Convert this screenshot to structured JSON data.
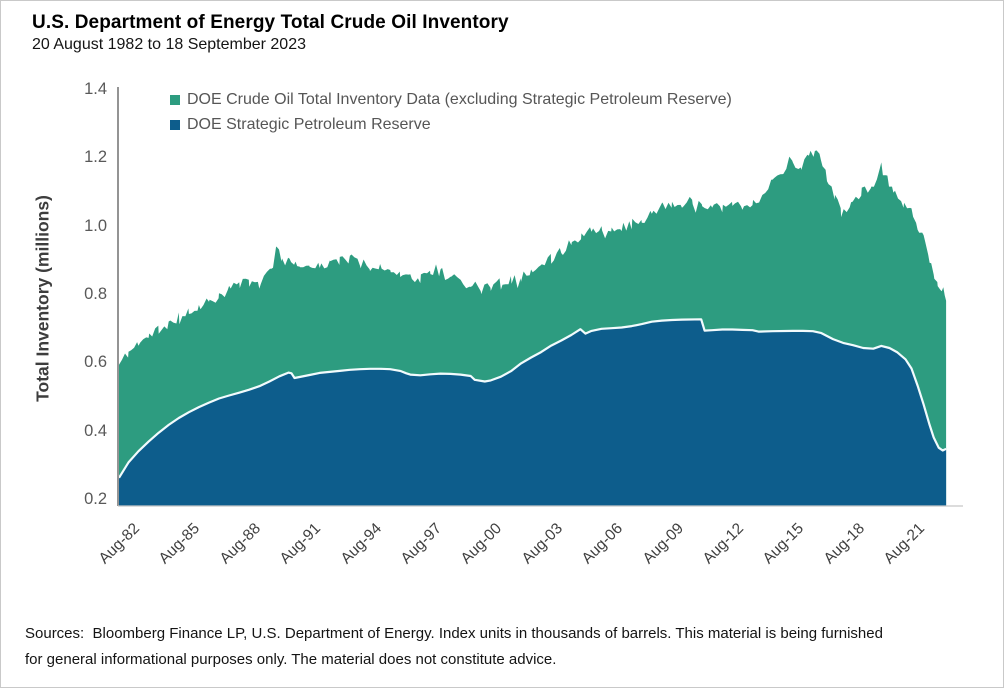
{
  "header": {
    "title": "U.S. Department of Energy Total Crude Oil Inventory",
    "subtitle": "20 August 1982 to 18 September 2023"
  },
  "footer": {
    "line1": "Sources:  Bloomberg Finance LP, U.S. Department of Energy. Index units in thousands of barrels. This material is being furnished",
    "line2": "for general informational purposes only. The material does not constitute advice."
  },
  "colors": {
    "green_area": "#2d9c80",
    "blue_area": "#0d5d8c",
    "separator_line": "#f2fbfd",
    "y_spine": "#7a7a7a",
    "x_spine": "#c8c8c8",
    "tick_text": "#595959",
    "xtick_text": "#3f3f3f"
  },
  "chart_data": {
    "type": "area",
    "stacked": true,
    "title": "U.S. Department of Energy Total Crude Oil Inventory",
    "subtitle": "20 August 1982 to 18 September 2023",
    "ylabel": "Total Inventory (millions)",
    "xlabel": "",
    "ylim": [
      0.2,
      1.4
    ],
    "x_range_years": [
      1982.63,
      2023.72
    ],
    "grid": false,
    "legend_position": "top-left inside",
    "legend": [
      {
        "label": "DOE Crude Oil Total Inventory Data (excluding Strategic Petroleum Reserve)",
        "color": "#2d9c80"
      },
      {
        "label": "DOE Strategic Petroleum Reserve",
        "color": "#0d5d8c"
      }
    ],
    "y_ticks": [
      {
        "label": "1.4",
        "v": 1.4
      },
      {
        "label": "1.2",
        "v": 1.2
      },
      {
        "label": "1.0",
        "v": 1.0
      },
      {
        "label": "0.8",
        "v": 0.8
      },
      {
        "label": "0.6",
        "v": 0.6
      },
      {
        "label": "0.4",
        "v": 0.4
      },
      {
        "label": "0.2",
        "v": 0.2
      }
    ],
    "x_ticks": [
      {
        "label": "Aug-82",
        "t": 1982.63
      },
      {
        "label": "Aug-85",
        "t": 1985.63
      },
      {
        "label": "Aug-88",
        "t": 1988.63
      },
      {
        "label": "Aug-91",
        "t": 1991.63
      },
      {
        "label": "Aug-94",
        "t": 1994.63
      },
      {
        "label": "Aug-97",
        "t": 1997.63
      },
      {
        "label": "Aug-00",
        "t": 2000.63
      },
      {
        "label": "Aug-03",
        "t": 2003.63
      },
      {
        "label": "Aug-06",
        "t": 2006.63
      },
      {
        "label": "Aug-09",
        "t": 2009.63
      },
      {
        "label": "Aug-12",
        "t": 2012.63
      },
      {
        "label": "Aug-15",
        "t": 2015.63
      },
      {
        "label": "Aug-18",
        "t": 2018.63
      },
      {
        "label": "Aug-21",
        "t": 2021.63
      }
    ],
    "note": "Stacked area chart, weekly data. Values in millions (index units are thousands of barrels). 'spr' is the bottom blue band (line values = SPR level). 'total_top_of_stack' is the top edge of the green band (SPR + commercial inventory). Green band thickness = total minus SPR. Points are [decimal_year, value] estimated from the plot.",
    "noise_amplitude": 0.015,
    "series": [
      {
        "name": "DOE Strategic Petroleum Reserve",
        "id": "spr",
        "color": "#0d5d8c",
        "points": [
          [
            1982.63,
            0.262
          ],
          [
            1983.1,
            0.307
          ],
          [
            1983.6,
            0.34
          ],
          [
            1984.1,
            0.368
          ],
          [
            1984.6,
            0.394
          ],
          [
            1985.1,
            0.417
          ],
          [
            1985.6,
            0.437
          ],
          [
            1986.1,
            0.454
          ],
          [
            1986.6,
            0.469
          ],
          [
            1987.1,
            0.482
          ],
          [
            1987.6,
            0.494
          ],
          [
            1988.1,
            0.503
          ],
          [
            1988.6,
            0.511
          ],
          [
            1989.1,
            0.52
          ],
          [
            1989.6,
            0.53
          ],
          [
            1990.1,
            0.544
          ],
          [
            1990.6,
            0.559
          ],
          [
            1991.05,
            0.57
          ],
          [
            1991.2,
            0.568
          ],
          [
            1991.35,
            0.554
          ],
          [
            1991.6,
            0.557
          ],
          [
            1992.1,
            0.563
          ],
          [
            1992.6,
            0.569
          ],
          [
            1993.1,
            0.572
          ],
          [
            1993.6,
            0.575
          ],
          [
            1994.1,
            0.578
          ],
          [
            1994.6,
            0.58
          ],
          [
            1995.1,
            0.581
          ],
          [
            1995.6,
            0.581
          ],
          [
            1996.1,
            0.58
          ],
          [
            1996.6,
            0.575
          ],
          [
            1996.9,
            0.568
          ],
          [
            1997.1,
            0.564
          ],
          [
            1997.6,
            0.562
          ],
          [
            1998.1,
            0.565
          ],
          [
            1998.6,
            0.567
          ],
          [
            1999.1,
            0.566
          ],
          [
            1999.6,
            0.564
          ],
          [
            2000.1,
            0.56
          ],
          [
            2000.3,
            0.549
          ],
          [
            2000.8,
            0.544
          ],
          [
            2001.1,
            0.547
          ],
          [
            2001.6,
            0.558
          ],
          [
            2002.1,
            0.574
          ],
          [
            2002.6,
            0.597
          ],
          [
            2003.1,
            0.614
          ],
          [
            2003.6,
            0.63
          ],
          [
            2004.1,
            0.649
          ],
          [
            2004.6,
            0.664
          ],
          [
            2005.1,
            0.68
          ],
          [
            2005.55,
            0.697
          ],
          [
            2005.8,
            0.684
          ],
          [
            2006.1,
            0.692
          ],
          [
            2006.6,
            0.698
          ],
          [
            2007.1,
            0.7
          ],
          [
            2007.6,
            0.702
          ],
          [
            2008.1,
            0.706
          ],
          [
            2008.6,
            0.712
          ],
          [
            2009.1,
            0.719
          ],
          [
            2009.6,
            0.722
          ],
          [
            2010.1,
            0.724
          ],
          [
            2010.6,
            0.725
          ],
          [
            2011.55,
            0.726
          ],
          [
            2011.72,
            0.693
          ],
          [
            2012.1,
            0.694
          ],
          [
            2012.6,
            0.696
          ],
          [
            2013.1,
            0.696
          ],
          [
            2013.6,
            0.695
          ],
          [
            2014.1,
            0.694
          ],
          [
            2014.4,
            0.69
          ],
          [
            2015.1,
            0.691
          ],
          [
            2016.1,
            0.692
          ],
          [
            2016.6,
            0.692
          ],
          [
            2017.1,
            0.691
          ],
          [
            2017.5,
            0.686
          ],
          [
            2018.1,
            0.668
          ],
          [
            2018.6,
            0.657
          ],
          [
            2019.1,
            0.65
          ],
          [
            2019.6,
            0.642
          ],
          [
            2020.1,
            0.64
          ],
          [
            2020.5,
            0.648
          ],
          [
            2020.9,
            0.642
          ],
          [
            2021.3,
            0.629
          ],
          [
            2021.7,
            0.609
          ],
          [
            2022.0,
            0.582
          ],
          [
            2022.3,
            0.532
          ],
          [
            2022.6,
            0.477
          ],
          [
            2022.9,
            0.417
          ],
          [
            2023.1,
            0.38
          ],
          [
            2023.35,
            0.35
          ],
          [
            2023.55,
            0.342
          ],
          [
            2023.72,
            0.347
          ]
        ]
      },
      {
        "name": "DOE Crude Oil Total Inventory Data (excluding Strategic Petroleum Reserve)",
        "id": "total_top_of_stack",
        "color": "#2d9c80",
        "points": [
          [
            1982.63,
            0.593
          ],
          [
            1983.1,
            0.628
          ],
          [
            1983.6,
            0.658
          ],
          [
            1984.1,
            0.674
          ],
          [
            1984.6,
            0.694
          ],
          [
            1985.1,
            0.71
          ],
          [
            1985.6,
            0.724
          ],
          [
            1986.1,
            0.744
          ],
          [
            1986.6,
            0.764
          ],
          [
            1987.1,
            0.78
          ],
          [
            1987.6,
            0.794
          ],
          [
            1988.1,
            0.81
          ],
          [
            1988.6,
            0.828
          ],
          [
            1989.1,
            0.834
          ],
          [
            1989.6,
            0.828
          ],
          [
            1990.2,
            0.868
          ],
          [
            1990.45,
            0.943
          ],
          [
            1990.7,
            0.89
          ],
          [
            1991.1,
            0.906
          ],
          [
            1991.4,
            0.888
          ],
          [
            1991.6,
            0.884
          ],
          [
            1992.1,
            0.89
          ],
          [
            1992.6,
            0.88
          ],
          [
            1993.1,
            0.894
          ],
          [
            1993.6,
            0.894
          ],
          [
            1994.1,
            0.904
          ],
          [
            1994.6,
            0.886
          ],
          [
            1995.1,
            0.88
          ],
          [
            1995.6,
            0.876
          ],
          [
            1996.1,
            0.87
          ],
          [
            1996.6,
            0.86
          ],
          [
            1997.1,
            0.85
          ],
          [
            1997.6,
            0.844
          ],
          [
            1998.1,
            0.86
          ],
          [
            1998.6,
            0.864
          ],
          [
            1999.1,
            0.858
          ],
          [
            1999.6,
            0.84
          ],
          [
            2000.1,
            0.82
          ],
          [
            2000.6,
            0.81
          ],
          [
            2001.1,
            0.824
          ],
          [
            2001.6,
            0.834
          ],
          [
            2002.1,
            0.844
          ],
          [
            2002.6,
            0.85
          ],
          [
            2003.1,
            0.864
          ],
          [
            2003.6,
            0.88
          ],
          [
            2004.1,
            0.9
          ],
          [
            2004.6,
            0.924
          ],
          [
            2005.1,
            0.954
          ],
          [
            2005.6,
            0.974
          ],
          [
            2006.1,
            0.984
          ],
          [
            2006.6,
            0.994
          ],
          [
            2007.1,
            0.988
          ],
          [
            2007.6,
            0.994
          ],
          [
            2008.1,
            1.004
          ],
          [
            2008.6,
            1.004
          ],
          [
            2009.1,
            1.038
          ],
          [
            2009.6,
            1.054
          ],
          [
            2010.1,
            1.06
          ],
          [
            2010.6,
            1.064
          ],
          [
            2011.1,
            1.07
          ],
          [
            2011.6,
            1.054
          ],
          [
            2012.1,
            1.064
          ],
          [
            2012.6,
            1.054
          ],
          [
            2013.1,
            1.068
          ],
          [
            2013.6,
            1.058
          ],
          [
            2014.1,
            1.064
          ],
          [
            2014.6,
            1.08
          ],
          [
            2015.1,
            1.128
          ],
          [
            2015.6,
            1.153
          ],
          [
            2016.1,
            1.183
          ],
          [
            2016.5,
            1.173
          ],
          [
            2016.9,
            1.203
          ],
          [
            2017.2,
            1.213
          ],
          [
            2017.5,
            1.193
          ],
          [
            2017.8,
            1.138
          ],
          [
            2018.2,
            1.083
          ],
          [
            2018.5,
            1.038
          ],
          [
            2019.0,
            1.063
          ],
          [
            2019.5,
            1.098
          ],
          [
            2020.0,
            1.103
          ],
          [
            2020.5,
            1.173
          ],
          [
            2020.8,
            1.133
          ],
          [
            2021.1,
            1.103
          ],
          [
            2021.6,
            1.063
          ],
          [
            2022.0,
            1.043
          ],
          [
            2022.3,
            1.003
          ],
          [
            2022.6,
            0.958
          ],
          [
            2022.9,
            0.903
          ],
          [
            2023.1,
            0.863
          ],
          [
            2023.3,
            0.828
          ],
          [
            2023.5,
            0.806
          ],
          [
            2023.65,
            0.81
          ],
          [
            2023.72,
            0.783
          ]
        ]
      }
    ]
  }
}
